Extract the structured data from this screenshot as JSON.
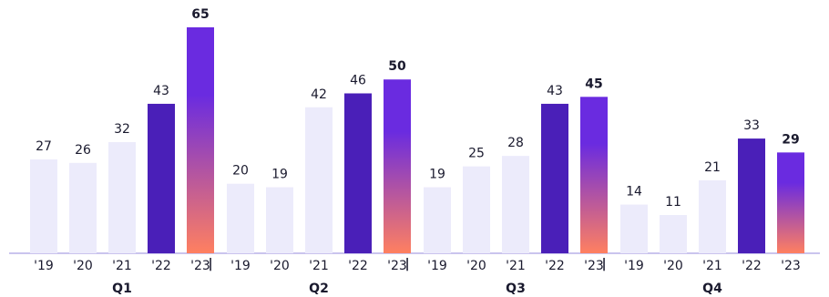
{
  "chart_data": {
    "type": "grouped-bar",
    "categories": [
      "Q1",
      "Q2",
      "Q3",
      "Q4"
    ],
    "series": [
      {
        "name": "'19",
        "color": "#ecebfb",
        "values": [
          27,
          20,
          19,
          14
        ]
      },
      {
        "name": "'20",
        "color": "#ecebfb",
        "values": [
          26,
          19,
          25,
          11
        ]
      },
      {
        "name": "'21",
        "color": "#ecebfb",
        "values": [
          32,
          42,
          28,
          21
        ]
      },
      {
        "name": "'22",
        "color": "#4a1fb8",
        "values": [
          43,
          46,
          43,
          33
        ]
      },
      {
        "name": "'23",
        "color": [
          "#6a2be0",
          "#ff8060"
        ],
        "values": [
          65,
          50,
          45,
          29
        ],
        "bold_labels": true
      }
    ],
    "separator": "|"
  }
}
